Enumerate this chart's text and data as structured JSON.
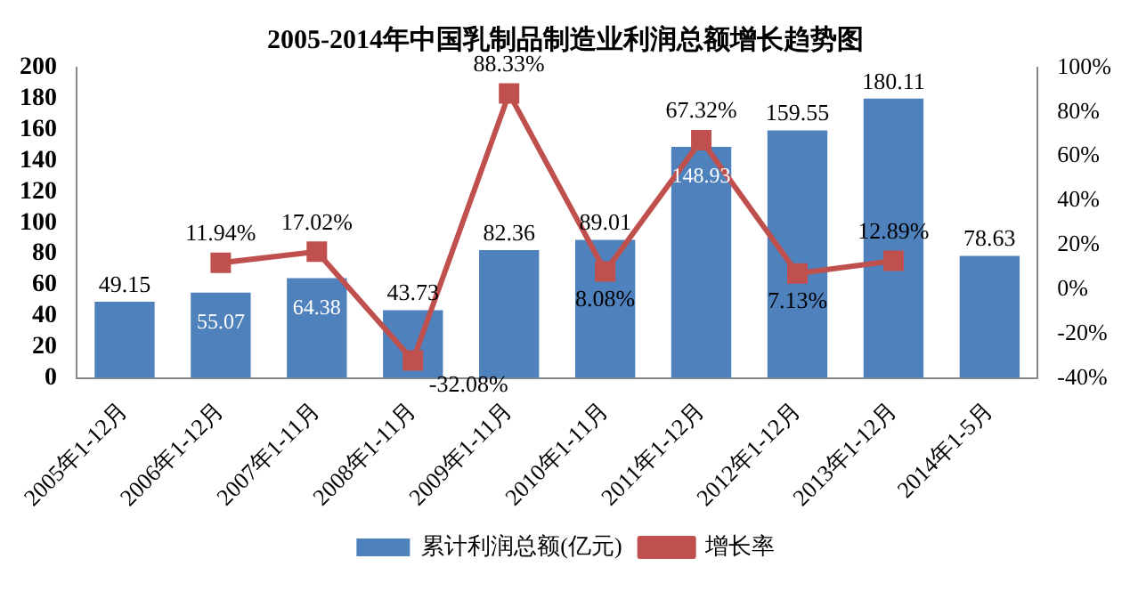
{
  "chart_data": {
    "type": "bar",
    "title": "2005-2014年中国乳制品制造业利润总额增长趋势图",
    "categories": [
      "2005年1-12月",
      "2006年1-12月",
      "2007年1-11月",
      "2008年1-11月",
      "2009年1-11月",
      "2010年1-11月",
      "2011年1-12月",
      "2012年1-12月",
      "2013年1-12月",
      "2014年1-5月"
    ],
    "series": [
      {
        "name": "累计利润总额(亿元)",
        "color": "#4f81bd",
        "values": [
          49.15,
          55.07,
          64.38,
          43.73,
          82.36,
          89.01,
          148.93,
          159.55,
          180.11,
          78.63
        ],
        "value_labels": [
          "49.15",
          "55.07",
          "64.38",
          "43.73",
          "82.36",
          "89.01",
          "148.93",
          "159.55",
          "180.11",
          "78.63"
        ]
      },
      {
        "name": "增长率",
        "type": "line",
        "axis": "y2",
        "color": "#c0504d",
        "marker": "square",
        "values": [
          null,
          11.94,
          17.02,
          -32.08,
          88.33,
          8.08,
          67.32,
          7.13,
          12.89,
          null
        ],
        "value_labels": [
          null,
          "11.94%",
          "17.02%",
          "-32.08%",
          "88.33%",
          "8.08%",
          "67.32%",
          "7.13%",
          "12.89%",
          null
        ]
      }
    ],
    "ylim": [
      0,
      200
    ],
    "yticks": [
      0,
      20,
      40,
      60,
      80,
      100,
      120,
      140,
      160,
      180,
      200
    ],
    "y2lim": [
      -40,
      100
    ],
    "y2ticks": [
      {
        "value": -40,
        "label": "-40%"
      },
      {
        "value": -20,
        "label": "-20%"
      },
      {
        "value": 0,
        "label": "0%"
      },
      {
        "value": 20,
        "label": "20%"
      },
      {
        "value": 40,
        "label": "40%"
      },
      {
        "value": 60,
        "label": "60%"
      },
      {
        "value": 80,
        "label": "80%"
      },
      {
        "value": 100,
        "label": "100%"
      }
    ],
    "grid": false,
    "legend": "bottom"
  }
}
